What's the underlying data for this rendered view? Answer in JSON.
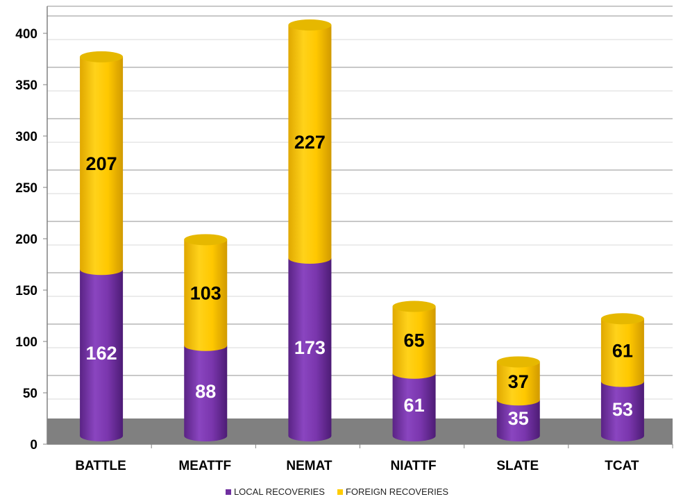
{
  "chart_data": {
    "type": "bar",
    "stacked": true,
    "style": "3d-cylinder",
    "categories": [
      "BATTLE",
      "MEATTF",
      "NEMAT",
      "NIATTF",
      "SLATE",
      "TCAT"
    ],
    "series": [
      {
        "name": "LOCAL RECOVERIES",
        "color": "#7030A0",
        "values": [
          162,
          88,
          173,
          61,
          35,
          53
        ]
      },
      {
        "name": "FOREIGN RECOVERIES",
        "color": "#FFCC00",
        "values": [
          207,
          103,
          227,
          65,
          37,
          61
        ]
      }
    ],
    "y_ticks": [
      "0",
      "50",
      "100",
      "150",
      "200",
      "250",
      "300",
      "350",
      "400"
    ],
    "ylim": [
      0,
      400
    ],
    "grid": true,
    "legend_position": "bottom",
    "colors": {
      "floor": "#808080",
      "grid": "#A6A6A6",
      "label_local": "#FFFFFF",
      "label_foreign": "#000000"
    }
  }
}
